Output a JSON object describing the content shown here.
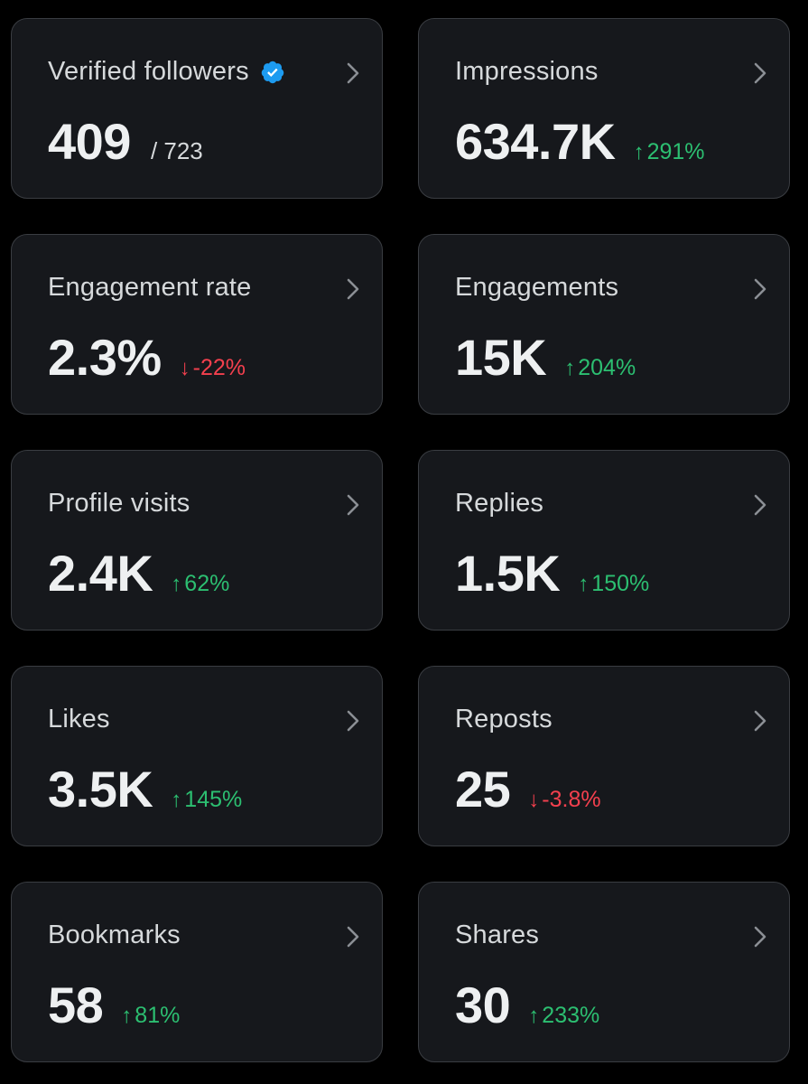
{
  "cards": [
    {
      "title": "Verified followers",
      "verified": true,
      "value": "409",
      "sub_value": "/ 723",
      "change": "",
      "trend": ""
    },
    {
      "title": "Impressions",
      "value": "634.7K",
      "sub_value": "",
      "change": "291%",
      "trend": "up"
    },
    {
      "title": "Engagement rate",
      "value": "2.3%",
      "sub_value": "",
      "change": "-22%",
      "trend": "down"
    },
    {
      "title": "Engagements",
      "value": "15K",
      "sub_value": "",
      "change": "204%",
      "trend": "up"
    },
    {
      "title": "Profile visits",
      "value": "2.4K",
      "sub_value": "",
      "change": "62%",
      "trend": "up"
    },
    {
      "title": "Replies",
      "value": "1.5K",
      "sub_value": "",
      "change": "150%",
      "trend": "up"
    },
    {
      "title": "Likes",
      "value": "3.5K",
      "sub_value": "",
      "change": "145%",
      "trend": "up"
    },
    {
      "title": "Reposts",
      "value": "25",
      "sub_value": "",
      "change": "-3.8%",
      "trend": "down"
    },
    {
      "title": "Bookmarks",
      "value": "58",
      "sub_value": "",
      "change": "81%",
      "trend": "up"
    },
    {
      "title": "Shares",
      "value": "30",
      "sub_value": "",
      "change": "233%",
      "trend": "up"
    }
  ],
  "icons": {
    "chevron": "chevron-right-icon",
    "verified": "verified-badge-icon",
    "up": "arrow-up-icon",
    "down": "arrow-down-icon"
  },
  "colors": {
    "background": "#000000",
    "card": "#16181c",
    "border": "#3a3d42",
    "positive": "#2cbf71",
    "negative": "#f4404e",
    "verified": "#1d9bf0"
  }
}
